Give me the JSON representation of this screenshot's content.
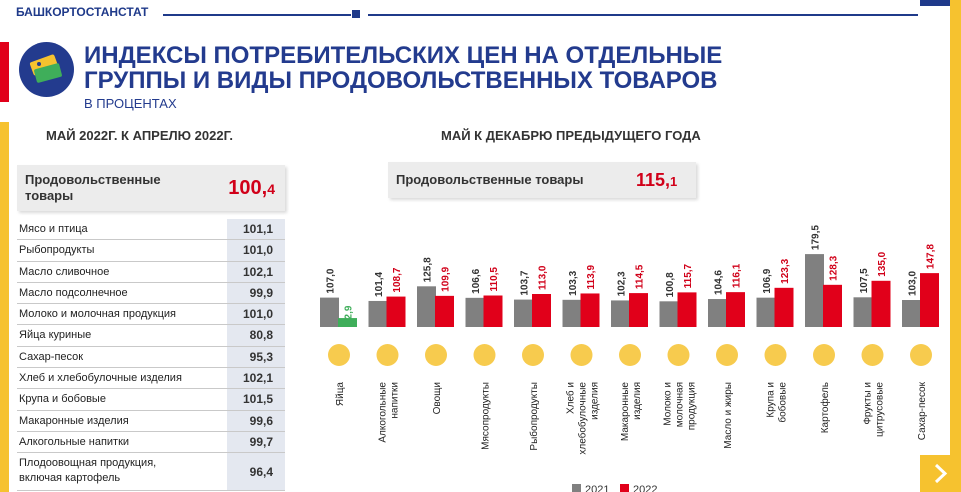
{
  "header": {
    "org": "БАШКОРТОСТАНСТАТ"
  },
  "title_lines": [
    "ИНДЕКСЫ ПОТРЕБИТЕЛЬСКИХ ЦЕН НА ОТДЕЛЬНЫЕ",
    "ГРУППЫ И ВИДЫ ПРОДОВОЛЬСТВЕННЫХ ТОВАРОВ"
  ],
  "subtitle": "В ПРОЦЕНТАХ",
  "left_panel": {
    "heading": "МАЙ  2022Г. К АПРЕЛЮ 2022Г.",
    "food_label": "Продовольственные товары",
    "food_value_main": "100,",
    "food_value_frac": "4",
    "rows": [
      {
        "name": "Мясо и птица",
        "value": "101,1"
      },
      {
        "name": "Рыбопродукты",
        "value": "101,0"
      },
      {
        "name": "Масло сливочное",
        "value": "102,1"
      },
      {
        "name": "Масло подсолнечное",
        "value": "99,9"
      },
      {
        "name": "Молоко и молочная продукция",
        "value": "101,0"
      },
      {
        "name": "Яйца куриные",
        "value": "80,8"
      },
      {
        "name": "Сахар-песок",
        "value": "95,3"
      },
      {
        "name": "Хлеб и хлебобулочные изделия",
        "value": "102,1"
      },
      {
        "name": "Крупа и бобовые",
        "value": "101,5"
      },
      {
        "name": "Макаронные изделия",
        "value": "99,6"
      },
      {
        "name": "Алкогольные напитки",
        "value": "99,7"
      },
      {
        "name": "Плодоовощная продукция,\nвключая картофель",
        "value": "96,4"
      }
    ]
  },
  "right_panel": {
    "heading": "МАЙ К ДЕКАБРЮ ПРЕДЫДУЩЕГО ГОДА",
    "food_label": "Продовольственные товары",
    "food_value_main": "115,",
    "food_value_frac": "1"
  },
  "colors": {
    "accent_blue": "#233b8e",
    "red": "#e1001a",
    "yellow": "#f6c22f",
    "grey_bar": "#808080"
  },
  "icons": [
    "category-icon",
    "egg-icon",
    "bottles-icon",
    "vegetables-icon",
    "meat-icon",
    "fish-icon",
    "bread-icon",
    "pasta-icon",
    "milk-icon",
    "oil-icon",
    "beans-icon",
    "potato-icon",
    "fruits-icon",
    "sugar-icon",
    "next-arrow-icon"
  ],
  "chart_data": {
    "type": "bar",
    "categories": [
      "Яйца",
      "Алкогольные напитки",
      "Овощи",
      "Мясопродукты",
      "Рыбопродукты",
      "Хлеб и хлебобулочные изделия",
      "Макаронные изделия",
      "Молоко и молочная продукция",
      "Масло и жиры",
      "Крупа и бобовые",
      "Картофель",
      "Фрукты и цитрусовые",
      "Сахар-песок"
    ],
    "category_lines": [
      [
        "Яйца"
      ],
      [
        "Алкогольные",
        "напитки"
      ],
      [
        "Овощи"
      ],
      [
        "Мясопродукты"
      ],
      [
        "Рыбопродукты"
      ],
      [
        "Хлеб и",
        "хлебобулочные",
        "изделия"
      ],
      [
        "Макаронные",
        "изделия"
      ],
      [
        "Молоко и",
        "молочная",
        "продукция"
      ],
      [
        "Масло и жиры"
      ],
      [
        "Крупа и",
        "бобовые"
      ],
      [
        "Картофель"
      ],
      [
        "Фрукты и",
        "цитрусовые"
      ],
      [
        "Сахар-песок"
      ]
    ],
    "series": [
      {
        "name": "2021",
        "color": "#808080",
        "values": [
          107.0,
          101.4,
          125.8,
          106.6,
          103.7,
          103.3,
          102.3,
          100.8,
          104.6,
          106.9,
          179.5,
          107.5,
          103.0
        ],
        "labels": [
          "107,0",
          "101,4",
          "125,8",
          "106,6",
          "103,7",
          "103,3",
          "102,3",
          "100,8",
          "104,6",
          "106,9",
          "179,5",
          "107,5",
          "103,0"
        ]
      },
      {
        "name": "2022",
        "color": "#e1001a",
        "values": [
          72.9,
          108.7,
          109.9,
          110.5,
          113.0,
          113.9,
          114.5,
          115.7,
          116.1,
          123.3,
          128.3,
          135.0,
          147.8
        ],
        "labels": [
          "72,9",
          "108,7",
          "109,9",
          "110,5",
          "113,0",
          "113,9",
          "114,5",
          "115,7",
          "116,1",
          "123,3",
          "128,3",
          "135,0",
          "147,8"
        ]
      }
    ],
    "first_bar_override_color": "#3fae5a",
    "legend": "bottom-right",
    "grid": false
  }
}
